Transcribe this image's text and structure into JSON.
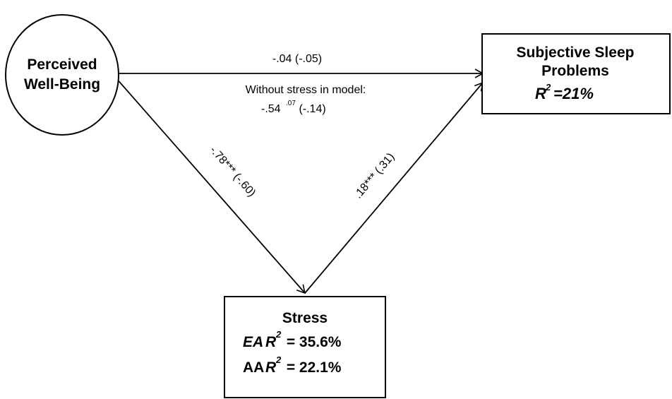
{
  "nodes": {
    "wellbeing": {
      "line1": "Perceived",
      "line2": "Well-Being"
    },
    "sleep": {
      "line1": "Subjective Sleep",
      "line2": "Problems",
      "r2_letter": "R",
      "r2_exp": "2",
      "r2_value": "=21%"
    },
    "stress": {
      "title": "Stress",
      "ea_label": "EA",
      "ea_r": "R",
      "ea_exp": "2",
      "ea_value": " = 35.6%",
      "aa_label": "AA",
      "aa_r": "R",
      "aa_exp": "2",
      "aa_value": " = 22.1%"
    }
  },
  "paths": {
    "direct": "-.04 (-.05)",
    "without_label": "Without stress in model:",
    "without_coef": "-.54",
    "without_sup": ".07",
    "without_std": " (-.14)",
    "wb_to_stress": "-.78*** (-.60)",
    "stress_to_sleep": ".18*** (.31)"
  }
}
